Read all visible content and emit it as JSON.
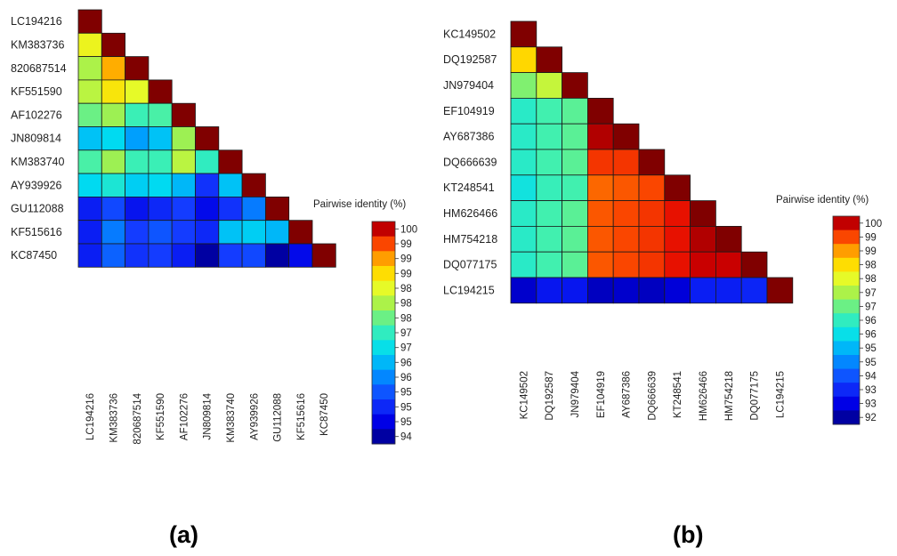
{
  "panel_labels": {
    "a": "(a)",
    "b": "(b)"
  },
  "chart_data": [
    {
      "type": "heatmap",
      "panel": "(a)",
      "legend_title": "Pairwise identity (%)",
      "legend_ticks": [
        "100",
        "99",
        "99",
        "99",
        "98",
        "98",
        "98",
        "97",
        "97",
        "96",
        "96",
        "95",
        "95",
        "95",
        "94"
      ],
      "legend_range": [
        94,
        100
      ],
      "labels": [
        "LC194216",
        "KM383736",
        "820687514",
        "KF551590",
        "AF102276",
        "JN809814",
        "KM383740",
        "AY939926",
        "GU112088",
        "KF515616",
        "KC87450"
      ],
      "values": [
        [
          100
        ],
        [
          98.3,
          100
        ],
        [
          97.8,
          98.9,
          100
        ],
        [
          97.9,
          98.5,
          98.2,
          100
        ],
        [
          97.4,
          97.7,
          97.1,
          97.2,
          100
        ],
        [
          96.3,
          96.5,
          96.0,
          96.3,
          97.7,
          100
        ],
        [
          97.2,
          97.7,
          97.1,
          97.1,
          97.9,
          97.0,
          100
        ],
        [
          96.5,
          96.8,
          96.4,
          96.5,
          96.2,
          95.1,
          96.3,
          100
        ],
        [
          94.9,
          95.3,
          94.8,
          95.0,
          95.2,
          94.7,
          95.1,
          95.7,
          100
        ],
        [
          94.9,
          95.7,
          95.2,
          95.4,
          95.2,
          95.0,
          96.3,
          96.4,
          96.2,
          100
        ],
        [
          94.9,
          95.5,
          95.1,
          95.2,
          94.9,
          94.2,
          95.2,
          95.3,
          94.2,
          94.7,
          100
        ]
      ]
    },
    {
      "type": "heatmap",
      "panel": "(b)",
      "legend_title": "Pairwise identity (%)",
      "legend_ticks": [
        "100",
        "99",
        "99",
        "98",
        "98",
        "97",
        "97",
        "96",
        "96",
        "95",
        "95",
        "94",
        "93",
        "93",
        "92"
      ],
      "legend_range": [
        92,
        100
      ],
      "labels": [
        "KC149502",
        "DQ192587",
        "JN979404",
        "EF104919",
        "AY687386",
        "DQ666639",
        "KT248541",
        "HM626466",
        "HM754218",
        "DQ077175",
        "LC194215"
      ],
      "values": [
        [
          100
        ],
        [
          98.2,
          100
        ],
        [
          96.7,
          97.3,
          100
        ],
        [
          95.9,
          96.2,
          96.4,
          100
        ],
        [
          95.9,
          96.2,
          96.4,
          99.8,
          100
        ],
        [
          95.9,
          96.2,
          96.4,
          99.3,
          99.3,
          100
        ],
        [
          95.6,
          96.1,
          96.2,
          99.0,
          99.1,
          99.2,
          100
        ],
        [
          95.9,
          96.2,
          96.4,
          99.1,
          99.2,
          99.3,
          99.5,
          100
        ],
        [
          95.9,
          96.2,
          96.4,
          99.1,
          99.2,
          99.3,
          99.5,
          99.8,
          100
        ],
        [
          95.9,
          96.2,
          96.4,
          99.1,
          99.2,
          99.3,
          99.5,
          99.7,
          99.7,
          100
        ],
        [
          92.6,
          93.1,
          93.1,
          92.5,
          92.6,
          92.5,
          92.7,
          93.2,
          93.2,
          93.3,
          100
        ]
      ]
    }
  ]
}
